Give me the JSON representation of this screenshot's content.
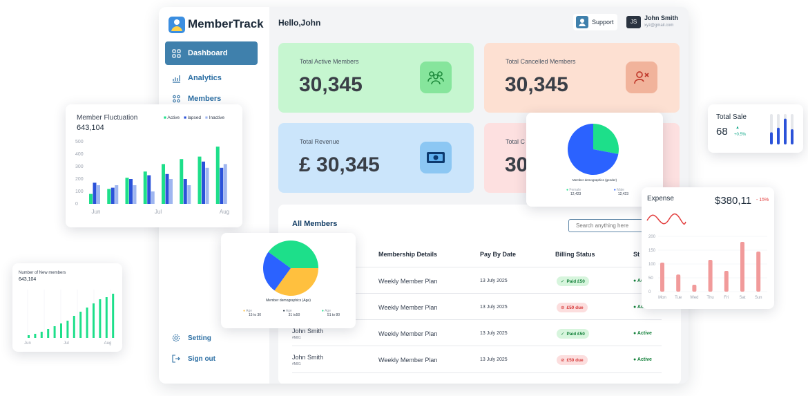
{
  "app": {
    "name": "MemberTrack",
    "greeting": "Hello,John",
    "support_label": "Support",
    "user": {
      "initials": "JS",
      "name": "John Smith",
      "email": "xyz@gmail.com"
    }
  },
  "sidebar": {
    "items": [
      {
        "label": "Dashboard",
        "icon": "dashboard-icon",
        "active": true
      },
      {
        "label": "Analytics",
        "icon": "analytics-icon"
      },
      {
        "label": "Members",
        "icon": "members-icon"
      },
      {
        "label": "Setting",
        "icon": "gear-icon"
      },
      {
        "label": "Sign out",
        "icon": "sign-out-icon"
      }
    ]
  },
  "stats": [
    {
      "label": "Total Active Members",
      "value": "30,345",
      "bg": "#c6f6d0",
      "icon_bg": "#86e59c",
      "icon": "group-icon"
    },
    {
      "label": "Total Cancelled Members",
      "value": "30,345",
      "bg": "#fde0d2",
      "icon_bg": "#f1b39b",
      "icon": "user-x-icon"
    },
    {
      "label": "Total Revenue",
      "value": "£ 30,345",
      "bg": "#cbe5fb",
      "icon_bg": "#8cc7f3",
      "icon": "money-icon"
    },
    {
      "label": "Total C",
      "value": "30",
      "bg": "#fde0e0",
      "icon_bg": "#f5b9b9",
      "icon": "card-icon"
    }
  ],
  "members": {
    "title": "All Members",
    "search_placeholder": "Search anything here",
    "headers": [
      "Membership Details",
      "Pay By Date",
      "Billing Status",
      "St"
    ],
    "rows": [
      {
        "name": "",
        "id": "",
        "plan": "Weekly Member Plan",
        "date": "13 July 2025",
        "billing": "Paid £50",
        "billing_type": "paid",
        "status": "Ac"
      },
      {
        "name": "",
        "id": "",
        "plan": "Weekly Member Plan",
        "date": "13 July 2025",
        "billing": "£50 due",
        "billing_type": "due",
        "status": "Ac"
      },
      {
        "name": "John Smith",
        "id": "#M01",
        "plan": "Weekly Member Plan",
        "date": "13 July 2025",
        "billing": "Paid £50",
        "billing_type": "paid",
        "status": "Active"
      },
      {
        "name": "John Smith",
        "id": "#M01",
        "plan": "Weekly Member Plan",
        "date": "13 July 2025",
        "billing": "£50 due",
        "billing_type": "due",
        "status": "Active"
      }
    ]
  },
  "fluctuation": {
    "title": "Member Fluctuation",
    "value": "643,104",
    "legend": [
      "Active",
      "lapsed",
      "Inactive"
    ],
    "colors": [
      "#1ddf8a",
      "#2b52d9",
      "#9fb6f0"
    ]
  },
  "new_members": {
    "title": "Number of New members",
    "value": "643,104",
    "color": "#1ddf8a"
  },
  "age_chart": {
    "caption": "Member demographics (Age)",
    "legend": [
      {
        "label": "Age",
        "range": "15 to 30",
        "color": "#ffc03e"
      },
      {
        "label": "Age",
        "range": "31 to50",
        "color": "#1d2b3a"
      },
      {
        "label": "Age",
        "range": "51 to 80",
        "color": "#1ddf8a"
      }
    ]
  },
  "gender_chart": {
    "caption": "Member demographics (gender)",
    "legend": [
      {
        "label": "Female",
        "value": "12,423",
        "color": "#1ddf8a"
      },
      {
        "label": "Male",
        "value": "12,423",
        "color": "#2b62ff"
      }
    ]
  },
  "total_sale": {
    "title": "Total Sale",
    "value": "68",
    "change": "+0.5%",
    "color": "#2b52d9",
    "up_color": "#13a88a"
  },
  "expense": {
    "title": "Expense",
    "value": "$380,11",
    "change": "- 15%",
    "color": "#f19a9a",
    "line_color": "#e23c3c"
  },
  "chart_data": [
    {
      "type": "bar",
      "title": "Member Fluctuation",
      "categories": [
        "Jun",
        "",
        "Jul",
        "",
        "",
        "Aug",
        "",
        ""
      ],
      "x_tick_labels": [
        "Jun",
        "Jul",
        "Aug"
      ],
      "y_ticks": [
        0,
        100,
        200,
        300,
        400,
        500
      ],
      "ylim": [
        0,
        500
      ],
      "series": [
        {
          "name": "Active",
          "values": [
            80,
            120,
            210,
            260,
            320,
            360,
            380,
            460
          ]
        },
        {
          "name": "lapsed",
          "values": [
            170,
            130,
            200,
            230,
            240,
            200,
            340,
            290
          ]
        },
        {
          "name": "Inactive",
          "values": [
            150,
            150,
            150,
            100,
            200,
            150,
            290,
            320
          ]
        }
      ]
    },
    {
      "type": "bar",
      "title": "Number of New members",
      "x_tick_labels": [
        "Jun",
        "Jul",
        "Aug"
      ],
      "values": [
        4,
        6,
        9,
        13,
        17,
        21,
        25,
        32,
        38,
        44,
        50,
        56,
        59,
        64
      ]
    },
    {
      "type": "pie",
      "title": "Member demographics (Age)",
      "categories": [
        "15 to 30",
        "31 to50",
        "51 to 80"
      ],
      "values": [
        35,
        25,
        40
      ],
      "colors": [
        "#ffc03e",
        "#2b62ff",
        "#1ddf8a"
      ]
    },
    {
      "type": "pie",
      "title": "Member demographics (gender)",
      "categories": [
        "Female",
        "Male"
      ],
      "values": [
        28,
        72
      ],
      "colors": [
        "#1ddf8a",
        "#2b62ff"
      ]
    },
    {
      "type": "bar",
      "title": "Total Sale",
      "values": [
        40,
        55,
        85,
        50
      ],
      "ylim": [
        0,
        100
      ]
    },
    {
      "type": "bar",
      "title": "Expense",
      "categories": [
        "Mon",
        "Tue",
        "Wed",
        "Thu",
        "Fri",
        "Sat",
        "Sun"
      ],
      "y_ticks": [
        0,
        50,
        100,
        150,
        200
      ],
      "ylim": [
        0,
        200
      ],
      "values": [
        105,
        62,
        25,
        115,
        75,
        180,
        145
      ]
    }
  ]
}
